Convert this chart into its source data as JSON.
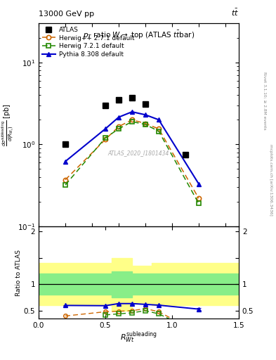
{
  "title_top": "13000 GeV pp",
  "title_top_right": "tt",
  "plot_title": "p_{T} ratio W \\rightarrow top (ATLAS ttbar)",
  "watermark": "ATLAS_2020_I1801434",
  "ylabel_ratio": "Ratio to ATLAS",
  "xlabel": "R_{Wt}^{subleading}",
  "right_label1": "Rivet 3.1.10; \\u2265 2.8M events",
  "right_label2": "mcplots.cern.ch [arXiv:1306.3436]",
  "xlim": [
    0,
    1.5
  ],
  "ylim_main_lo": 0.1,
  "ylim_main_hi": 30,
  "ylim_ratio_lo": 0.35,
  "ylim_ratio_hi": 2.1,
  "color_atlas": "#000000",
  "color_hwpp": "#cc6600",
  "color_hw72": "#228800",
  "color_py": "#0000cc",
  "atlas_x": [
    0.2,
    0.5,
    0.6,
    0.7,
    0.8,
    1.1
  ],
  "atlas_y": [
    1.0,
    3.0,
    3.5,
    3.7,
    3.1,
    0.75
  ],
  "hwpp_x": [
    0.2,
    0.5,
    0.6,
    0.7,
    0.8,
    0.9,
    1.2
  ],
  "hwpp_y": [
    0.37,
    1.15,
    1.65,
    2.0,
    1.8,
    1.55,
    0.22
  ],
  "hw72_x": [
    0.2,
    0.5,
    0.6,
    0.7,
    0.8,
    0.9,
    1.2
  ],
  "hw72_y": [
    0.32,
    1.2,
    1.55,
    1.9,
    1.75,
    1.45,
    0.19
  ],
  "py_x": [
    0.2,
    0.5,
    0.6,
    0.7,
    0.8,
    0.9,
    1.2
  ],
  "py_y": [
    0.62,
    1.55,
    2.15,
    2.5,
    2.3,
    2.0,
    0.33
  ],
  "ratio_hwpp_x": [
    0.2,
    0.5,
    0.6,
    0.7,
    0.8,
    0.9,
    1.2
  ],
  "ratio_hwpp_y": [
    0.4,
    0.48,
    0.49,
    0.5,
    0.54,
    0.48,
    0.08
  ],
  "ratio_hw72_x": [
    0.5,
    0.6,
    0.7,
    0.8,
    0.9,
    1.2
  ],
  "ratio_hw72_y": [
    0.42,
    0.44,
    0.46,
    0.5,
    0.44,
    0.08
  ],
  "ratio_py_x": [
    0.2,
    0.5,
    0.6,
    0.7,
    0.8,
    0.9,
    1.2
  ],
  "ratio_py_y": [
    0.6,
    0.595,
    0.635,
    0.635,
    0.62,
    0.605,
    0.53
  ],
  "ratio_py_yerr": [
    0.01,
    0.01,
    0.012,
    0.012,
    0.012,
    0.012,
    0.02
  ],
  "band_bins": [
    0.0,
    0.4,
    0.55,
    0.7,
    0.85,
    1.5
  ],
  "green_hi": [
    1.2,
    1.2,
    1.25,
    1.2,
    1.2,
    1.2
  ],
  "green_lo": [
    0.8,
    0.8,
    0.75,
    0.8,
    0.8,
    0.8
  ],
  "yellow_hi": [
    1.4,
    1.4,
    1.5,
    1.35,
    1.4,
    1.4
  ],
  "yellow_lo": [
    0.6,
    0.6,
    0.5,
    0.65,
    0.6,
    0.6
  ]
}
